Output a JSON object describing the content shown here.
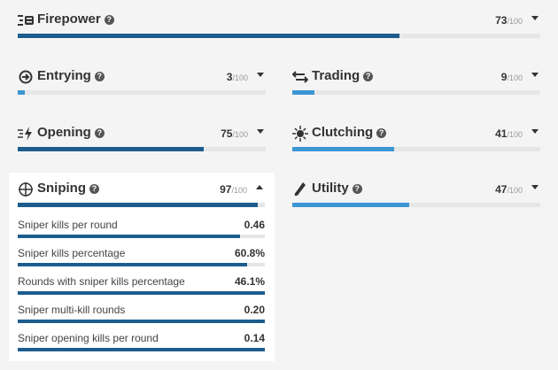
{
  "max_label": "/100",
  "firepower": {
    "title": "Firepower",
    "score": "73",
    "value": 73,
    "icon": "firepower-icon"
  },
  "entrying": {
    "title": "Entrying",
    "score": "3",
    "value": 3,
    "icon": "entrying-icon"
  },
  "trading": {
    "title": "Trading",
    "score": "9",
    "value": 9,
    "icon": "trading-icon"
  },
  "opening": {
    "title": "Opening",
    "score": "75",
    "value": 75,
    "icon": "opening-icon"
  },
  "clutching": {
    "title": "Clutching",
    "score": "41",
    "value": 41,
    "icon": "clutching-icon"
  },
  "sniping": {
    "title": "Sniping",
    "score": "97",
    "value": 97,
    "icon": "crosshair-icon",
    "stats": [
      {
        "label": "Sniper kills per round",
        "value": "0.46",
        "fill": 0.9
      },
      {
        "label": "Sniper kills percentage",
        "value": "60.8%",
        "fill": 0.93
      },
      {
        "label": "Rounds with sniper kills percentage",
        "value": "46.1%",
        "fill": 1.0
      },
      {
        "label": "Sniper multi-kill rounds",
        "value": "0.20",
        "fill": 1.0
      },
      {
        "label": "Sniper opening kills per round",
        "value": "0.14",
        "fill": 1.0
      }
    ]
  },
  "utility": {
    "title": "Utility",
    "score": "47",
    "value": 47,
    "icon": "utility-icon"
  },
  "colors": {
    "bar_dark": "#1d5d8e",
    "bar_light": "#3b96d3",
    "track": "#e6e6e6"
  }
}
